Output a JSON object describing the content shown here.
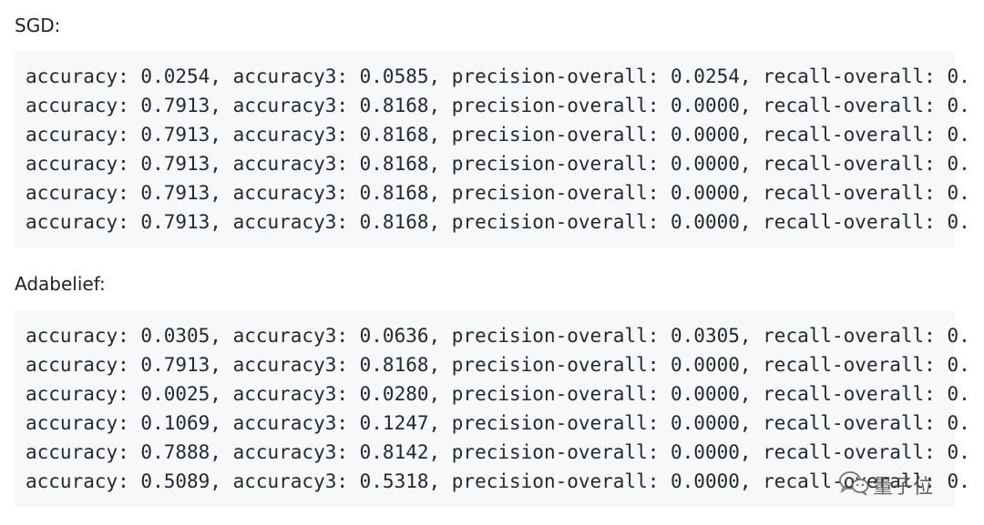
{
  "sections": [
    {
      "label": "SGD:",
      "lines": [
        "accuracy: 0.0254, accuracy3: 0.0585, precision-overall: 0.0254, recall-overall: 0.",
        "accuracy: 0.7913, accuracy3: 0.8168, precision-overall: 0.0000, recall-overall: 0.",
        "accuracy: 0.7913, accuracy3: 0.8168, precision-overall: 0.0000, recall-overall: 0.",
        "accuracy: 0.7913, accuracy3: 0.8168, precision-overall: 0.0000, recall-overall: 0.",
        "accuracy: 0.7913, accuracy3: 0.8168, precision-overall: 0.0000, recall-overall: 0.",
        "accuracy: 0.7913, accuracy3: 0.8168, precision-overall: 0.0000, recall-overall: 0."
      ]
    },
    {
      "label": "Adabelief:",
      "lines": [
        "accuracy: 0.0305, accuracy3: 0.0636, precision-overall: 0.0305, recall-overall: 0.",
        "accuracy: 0.7913, accuracy3: 0.8168, precision-overall: 0.0000, recall-overall: 0.",
        "accuracy: 0.0025, accuracy3: 0.0280, precision-overall: 0.0000, recall-overall: 0.",
        "accuracy: 0.1069, accuracy3: 0.1247, precision-overall: 0.0000, recall-overall: 0.",
        "accuracy: 0.7888, accuracy3: 0.8142, precision-overall: 0.0000, recall-overall: 0.",
        "accuracy: 0.5089, accuracy3: 0.5318, precision-overall: 0.0000, recall-overall: 0."
      ]
    }
  ],
  "watermark": {
    "icon": "wechat-icon",
    "text": "量子位",
    "color": "#555555"
  }
}
